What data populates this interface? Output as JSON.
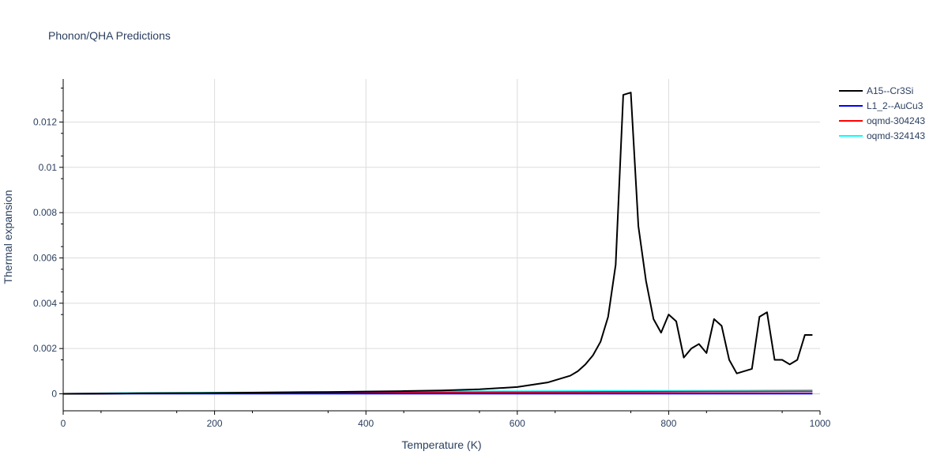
{
  "chart_data": {
    "type": "line",
    "title": "Phonon/QHA Predictions",
    "xlabel": "Temperature (K)",
    "ylabel": "Thermal expansion",
    "xlim": [
      0,
      1000
    ],
    "ylim": [
      -0.00075,
      0.0139
    ],
    "x_ticks": [
      0,
      200,
      400,
      600,
      800,
      1000
    ],
    "y_ticks": [
      0,
      0.002,
      0.004,
      0.006,
      0.008,
      0.01,
      0.012
    ],
    "x_tick_labels": [
      "0",
      "200",
      "400",
      "600",
      "800",
      "1000"
    ],
    "y_tick_labels": [
      "0",
      "0.002",
      "0.004",
      "0.006",
      "0.008",
      "0.01",
      "0.012"
    ],
    "grid": true,
    "legend_position": "top-right",
    "series": [
      {
        "name": "A15--Cr3Si",
        "color": "#000000",
        "x": [
          0,
          50,
          100,
          150,
          200,
          250,
          300,
          350,
          400,
          450,
          500,
          550,
          600,
          620,
          640,
          650,
          660,
          670,
          680,
          690,
          700,
          710,
          720,
          730,
          740,
          750,
          760,
          770,
          780,
          790,
          800,
          810,
          820,
          830,
          840,
          850,
          860,
          870,
          880,
          890,
          900,
          910,
          920,
          930,
          940,
          950,
          960,
          970,
          980,
          990
        ],
        "y": [
          0,
          1e-05,
          2e-05,
          3e-05,
          4e-05,
          5e-05,
          7e-05,
          8e-05,
          0.0001,
          0.00012,
          0.00015,
          0.0002,
          0.0003,
          0.0004,
          0.0005,
          0.0006,
          0.0007,
          0.0008,
          0.001,
          0.0013,
          0.0017,
          0.0023,
          0.0034,
          0.0057,
          0.0132,
          0.0133,
          0.0074,
          0.005,
          0.0033,
          0.0027,
          0.0035,
          0.0032,
          0.0016,
          0.002,
          0.0022,
          0.0018,
          0.0033,
          0.003,
          0.0015,
          0.0009,
          0.001,
          0.0011,
          0.0034,
          0.0036,
          0.0015,
          0.0015,
          0.0013,
          0.0015,
          0.0026,
          0.0026
        ]
      },
      {
        "name": "L1_2--AuCu3",
        "color": "#0000ff",
        "x": [
          0,
          100,
          200,
          300,
          400,
          500,
          600,
          700,
          800,
          900,
          990
        ],
        "y": [
          0,
          1e-05,
          1e-05,
          1e-05,
          1e-05,
          1e-05,
          1e-05,
          1e-05,
          1e-05,
          1e-05,
          1e-05
        ]
      },
      {
        "name": "oqmd-304243",
        "color": "#ff0000",
        "x": [
          0,
          100,
          200,
          300,
          400,
          500,
          600,
          700,
          800,
          900,
          990
        ],
        "y": [
          0,
          2e-05,
          3e-05,
          4e-05,
          5e-05,
          6e-05,
          7e-05,
          8e-05,
          9e-05,
          0.0001,
          0.00011
        ]
      },
      {
        "name": "oqmd-324143",
        "color": "#00ffff",
        "x": [
          0,
          100,
          200,
          300,
          400,
          500,
          600,
          700,
          800,
          900,
          990
        ],
        "y": [
          0,
          4e-05,
          5e-05,
          7e-05,
          9e-05,
          0.0001,
          0.00011,
          0.00012,
          0.00013,
          0.00014,
          0.00016
        ]
      }
    ]
  }
}
